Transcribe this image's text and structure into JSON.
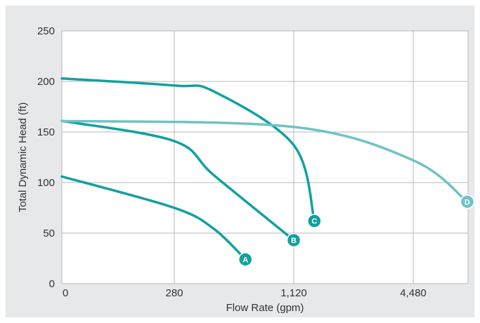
{
  "chart_data": {
    "type": "line",
    "title": "",
    "xlabel": "Flow Rate (gpm)",
    "ylabel": "Total Dynamic Head (ft)",
    "x_ticks": [
      "0",
      "280",
      "1,120",
      "4,480"
    ],
    "y_ticks": [
      "0",
      "50",
      "100",
      "150",
      "200",
      "250"
    ],
    "ylim": [
      0,
      250
    ],
    "grid": true,
    "series": [
      {
        "name": "A",
        "color": "#12a0a0",
        "points": [
          [
            0,
            106
          ],
          [
            280,
            75
          ],
          [
            560,
            54
          ],
          [
            780,
            24
          ]
        ]
      },
      {
        "name": "B",
        "color": "#12a0a0",
        "points": [
          [
            0,
            161
          ],
          [
            280,
            141
          ],
          [
            560,
            107
          ],
          [
            1120,
            43
          ]
        ]
      },
      {
        "name": "C",
        "color": "#12a0a0",
        "points": [
          [
            0,
            203
          ],
          [
            280,
            196
          ],
          [
            560,
            190
          ],
          [
            1120,
            137
          ],
          [
            1700,
            62
          ]
        ]
      },
      {
        "name": "D",
        "color": "#6fc2c4",
        "points": [
          [
            0,
            161
          ],
          [
            1120,
            155
          ],
          [
            4480,
            122
          ],
          [
            6000,
            81
          ]
        ]
      }
    ]
  }
}
